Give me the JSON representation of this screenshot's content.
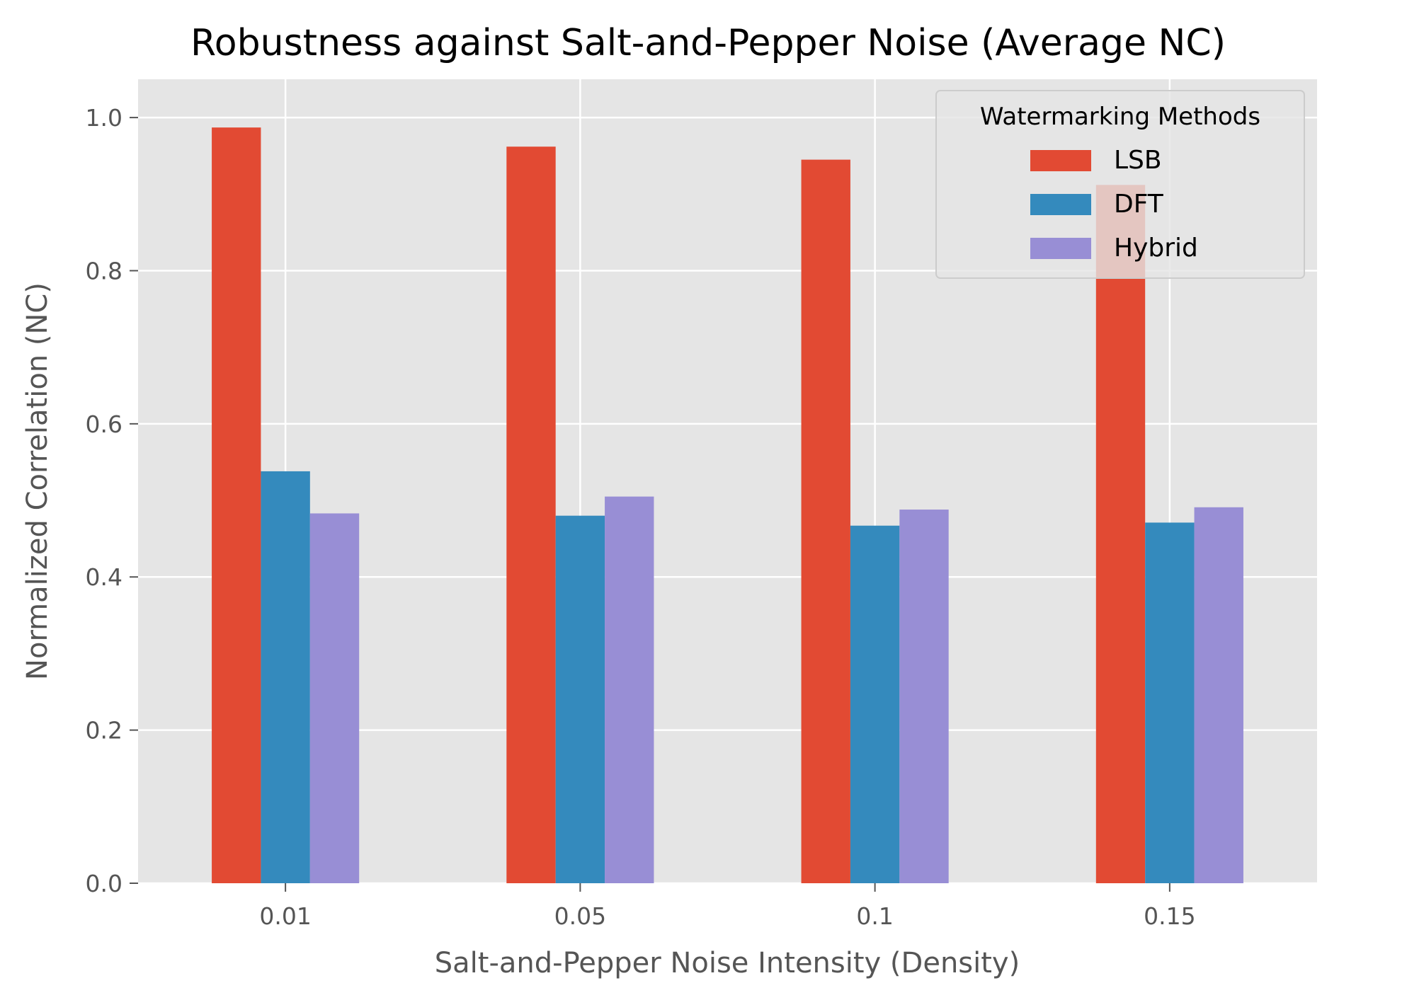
{
  "chart_data": {
    "type": "bar",
    "title": "Robustness against Salt-and-Pepper Noise (Average NC)",
    "xlabel": "Salt-and-Pepper Noise Intensity (Density)",
    "ylabel": "Normalized Correlation (NC)",
    "categories": [
      "0.01",
      "0.05",
      "0.1",
      "0.15"
    ],
    "series": [
      {
        "name": "LSB",
        "color": "#E24A33",
        "values": [
          0.987,
          0.962,
          0.945,
          0.912
        ]
      },
      {
        "name": "DFT",
        "color": "#348ABD",
        "values": [
          0.538,
          0.48,
          0.467,
          0.471
        ]
      },
      {
        "name": "Hybrid",
        "color": "#988ED5",
        "values": [
          0.483,
          0.505,
          0.488,
          0.491
        ]
      }
    ],
    "ylim": [
      0,
      1.05
    ],
    "yticks": [
      0.0,
      0.2,
      0.4,
      0.6,
      0.8,
      1.0
    ],
    "ytick_labels": [
      "0.0",
      "0.2",
      "0.4",
      "0.6",
      "0.8",
      "1.0"
    ],
    "grid": true,
    "legend": {
      "title": "Watermarking Methods",
      "position": "top-right"
    },
    "colors": {
      "plot_background": "#E5E5E5",
      "grid": "#FFFFFF",
      "text": "#555555",
      "title": "#000000"
    }
  }
}
